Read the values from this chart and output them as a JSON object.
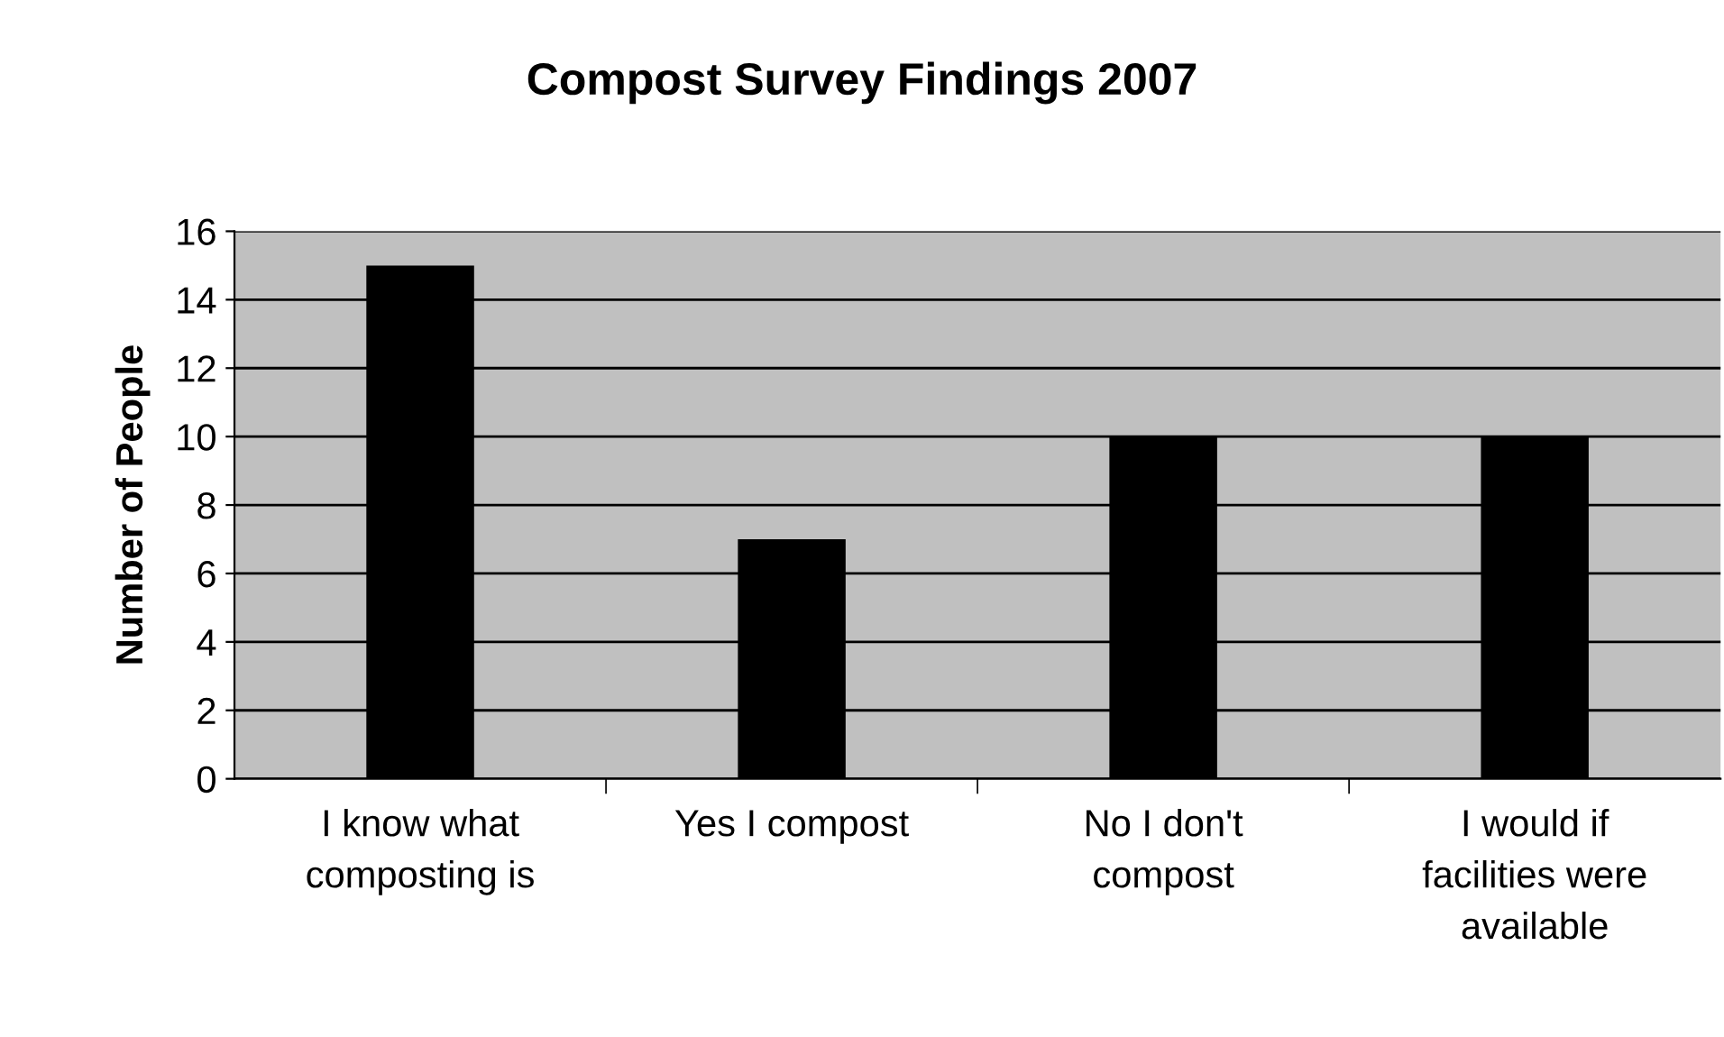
{
  "chart_data": {
    "type": "bar",
    "title": "Compost Survey Findings 2007",
    "ylabel": "Number of People",
    "categories": [
      "I know what\ncomposting is",
      "Yes I compost",
      "No I don't\ncompost",
      "I would if\nfacilities were\navailable"
    ],
    "values": [
      15,
      7,
      10,
      10
    ],
    "color": "#000000",
    "ylim": [
      0,
      16
    ],
    "yticks": [
      0,
      2,
      4,
      6,
      8,
      10,
      12,
      14,
      16
    ],
    "grid": "y",
    "legend": false
  }
}
